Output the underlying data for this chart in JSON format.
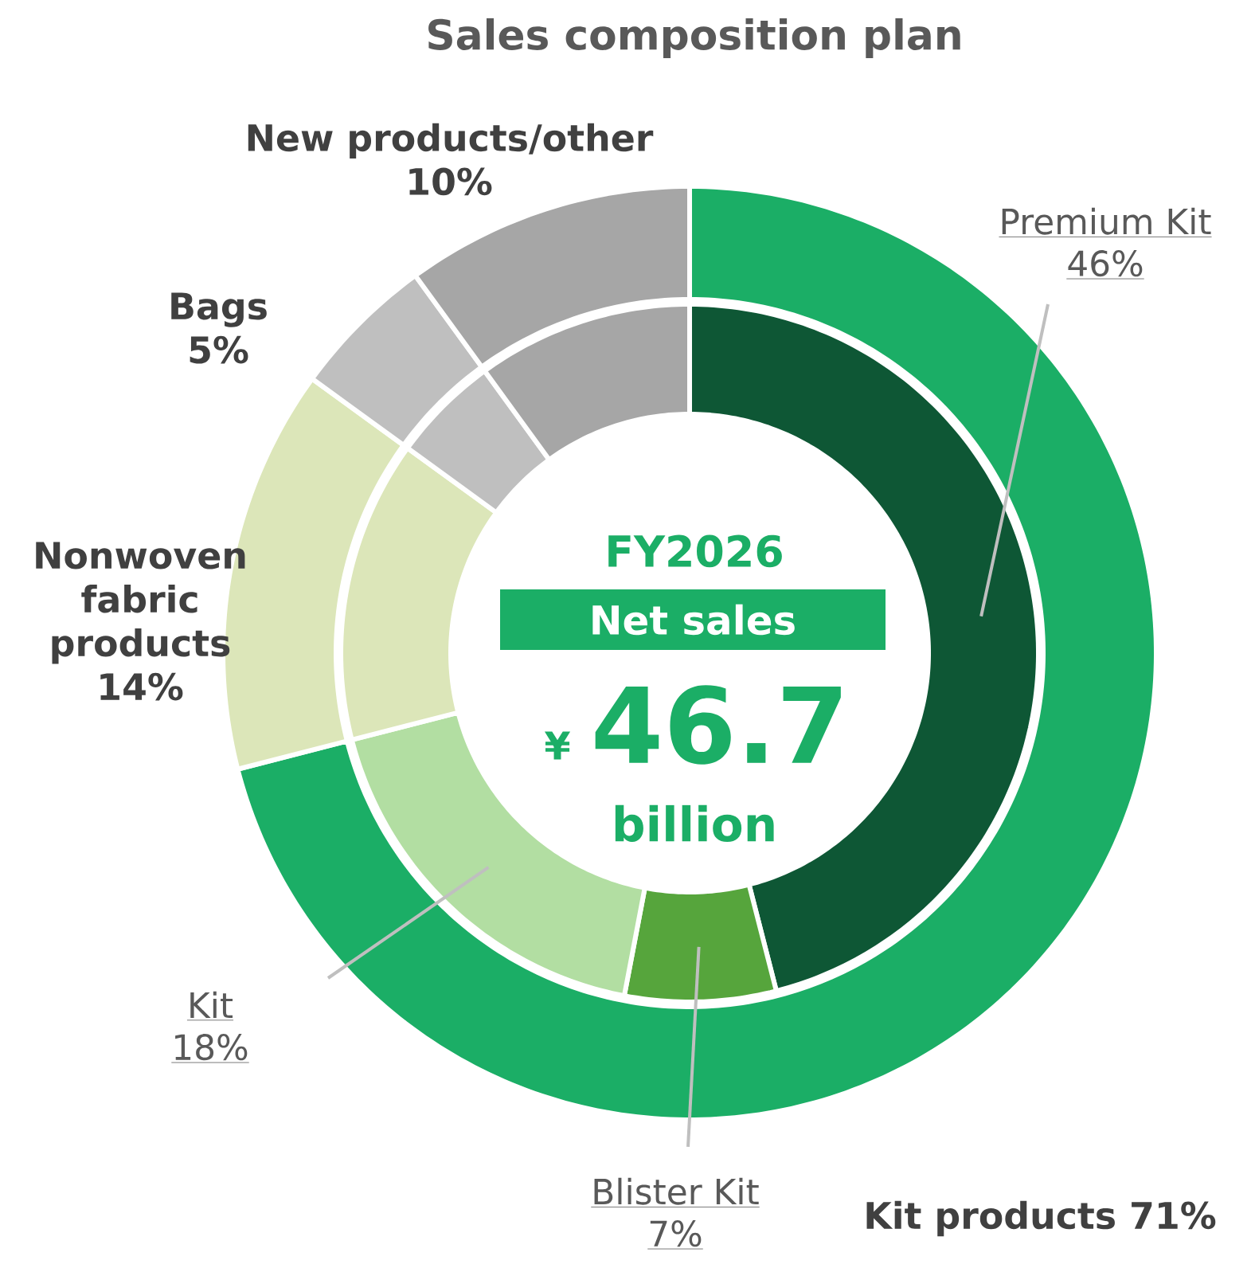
{
  "chart_data": [
    {
      "type": "donut",
      "title": "Sales composition plan",
      "categories": [
        "Kit products",
        "Nonwoven fabric products",
        "Bags",
        "New products/other"
      ],
      "values": [
        71,
        14,
        5,
        10
      ],
      "value_labels": [
        "71%",
        "14%",
        "5%",
        "10%"
      ],
      "colors": [
        "#1bae66",
        "#dce6b9",
        "#bfbfbf",
        "#a6a6a6"
      ],
      "annotations": [
        "FY2026",
        "Net sales",
        "¥",
        "46.7",
        "billion"
      ]
    },
    {
      "type": "donut",
      "categories": [
        "Premium Kit",
        "Blister Kit",
        "Kit",
        null,
        null,
        null
      ],
      "values": [
        46,
        7,
        18,
        14,
        5,
        10
      ],
      "value_labels": [
        "46%",
        "7%",
        "18%",
        null,
        null,
        null
      ],
      "colors": [
        "#0e5735",
        "#56a53c",
        "#b2dea2",
        "#dce6b9",
        "#bfbfbf",
        "#a6a6a6"
      ]
    }
  ]
}
